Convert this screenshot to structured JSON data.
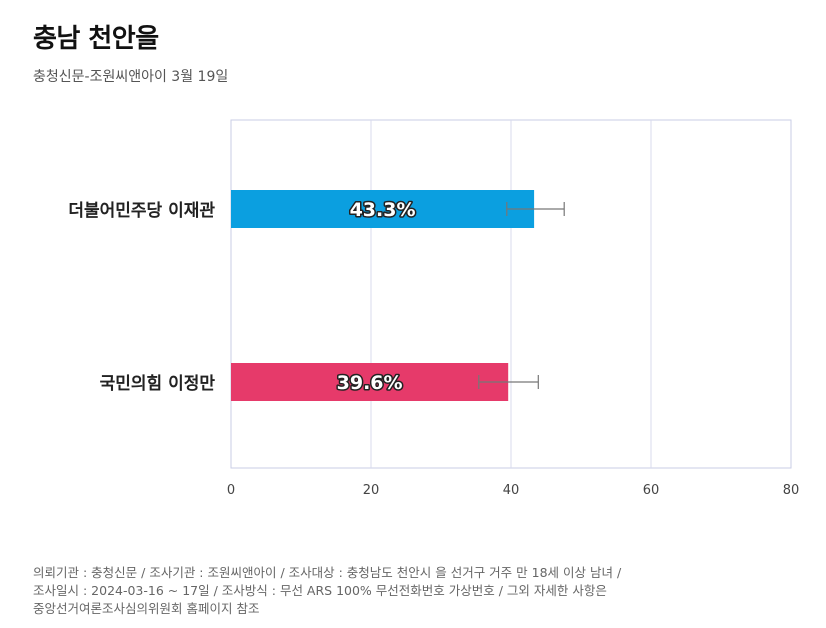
{
  "header": {
    "title": "충남 천안을",
    "subtitle": "충청신문-조원씨앤아이 3월 19일"
  },
  "chart_data": {
    "type": "bar",
    "orientation": "horizontal",
    "categories": [
      "더불어민주당 이재관",
      "국민의힘 이정만"
    ],
    "values": [
      43.3,
      39.6
    ],
    "value_labels": [
      "43.3%",
      "39.6%"
    ],
    "error_low": [
      39.4,
      35.4
    ],
    "error_high": [
      47.6,
      43.9
    ],
    "colors": [
      "#0B9FE0",
      "#E63A6A"
    ],
    "xlim": [
      0,
      80
    ],
    "xticks": [
      0,
      20,
      40,
      60,
      80
    ],
    "grid": true,
    "legend": "none"
  },
  "footnote": {
    "lines": [
      "의뢰기관 : 충청신문 / 조사기관 : 조원씨앤아이 / 조사대상 : 충청남도 천안시 을 선거구 거주 만 18세 이상 남녀 /",
      "조사일시 : 2024-03-16 ~ 17일 / 조사방식 : 무선 ARS 100% 무선전화번호 가상번호 / 그외 자세한 사항은",
      "중앙선거여론조사심의위원회 홈페이지 참조"
    ]
  }
}
